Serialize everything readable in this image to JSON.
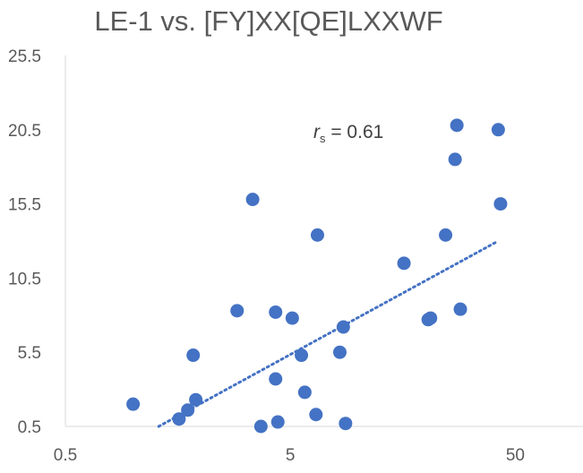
{
  "chart_data": {
    "type": "scatter",
    "title": "LE-1 vs. [FY]XX[QE]LXXWF",
    "annotation": {
      "symbol": "r",
      "subscript": "s",
      "text": " = 0.61"
    },
    "x_scale": "log",
    "xlim": [
      0.5,
      100
    ],
    "ylim": [
      0.5,
      25.5
    ],
    "x_ticks": [
      0.5,
      5,
      50
    ],
    "x_tick_labels": [
      "0.5",
      "5",
      "50"
    ],
    "y_ticks": [
      0.5,
      5.5,
      10.5,
      15.5,
      20.5,
      25.5
    ],
    "y_tick_labels": [
      "0.5",
      "5.5",
      "10.5",
      "15.5",
      "20.5",
      "25.5"
    ],
    "grid": false,
    "marker_color": "#4472C4",
    "trendline_color": "#4472C4",
    "trendline": {
      "style": "dotted",
      "x_range": [
        1.3,
        42
      ],
      "y_range": [
        0.5,
        13.0
      ]
    },
    "points": [
      {
        "x": 1.0,
        "y": 2.0
      },
      {
        "x": 1.6,
        "y": 1.0
      },
      {
        "x": 1.75,
        "y": 1.6
      },
      {
        "x": 1.85,
        "y": 5.3
      },
      {
        "x": 1.9,
        "y": 2.3
      },
      {
        "x": 2.9,
        "y": 8.3
      },
      {
        "x": 3.4,
        "y": 15.8
      },
      {
        "x": 3.7,
        "y": 0.5
      },
      {
        "x": 4.3,
        "y": 3.7
      },
      {
        "x": 4.3,
        "y": 8.2
      },
      {
        "x": 4.4,
        "y": 0.8
      },
      {
        "x": 5.1,
        "y": 7.8
      },
      {
        "x": 5.6,
        "y": 5.3
      },
      {
        "x": 5.8,
        "y": 2.8
      },
      {
        "x": 6.5,
        "y": 1.3
      },
      {
        "x": 6.6,
        "y": 13.4
      },
      {
        "x": 8.3,
        "y": 5.5
      },
      {
        "x": 8.6,
        "y": 7.2
      },
      {
        "x": 8.8,
        "y": 0.7
      },
      {
        "x": 16.0,
        "y": 11.5
      },
      {
        "x": 20.5,
        "y": 7.7
      },
      {
        "x": 21.0,
        "y": 7.8
      },
      {
        "x": 24.5,
        "y": 13.4
      },
      {
        "x": 27.0,
        "y": 18.5
      },
      {
        "x": 27.5,
        "y": 20.8
      },
      {
        "x": 28.5,
        "y": 8.4
      },
      {
        "x": 42.0,
        "y": 20.5
      },
      {
        "x": 43.0,
        "y": 15.5
      }
    ]
  }
}
